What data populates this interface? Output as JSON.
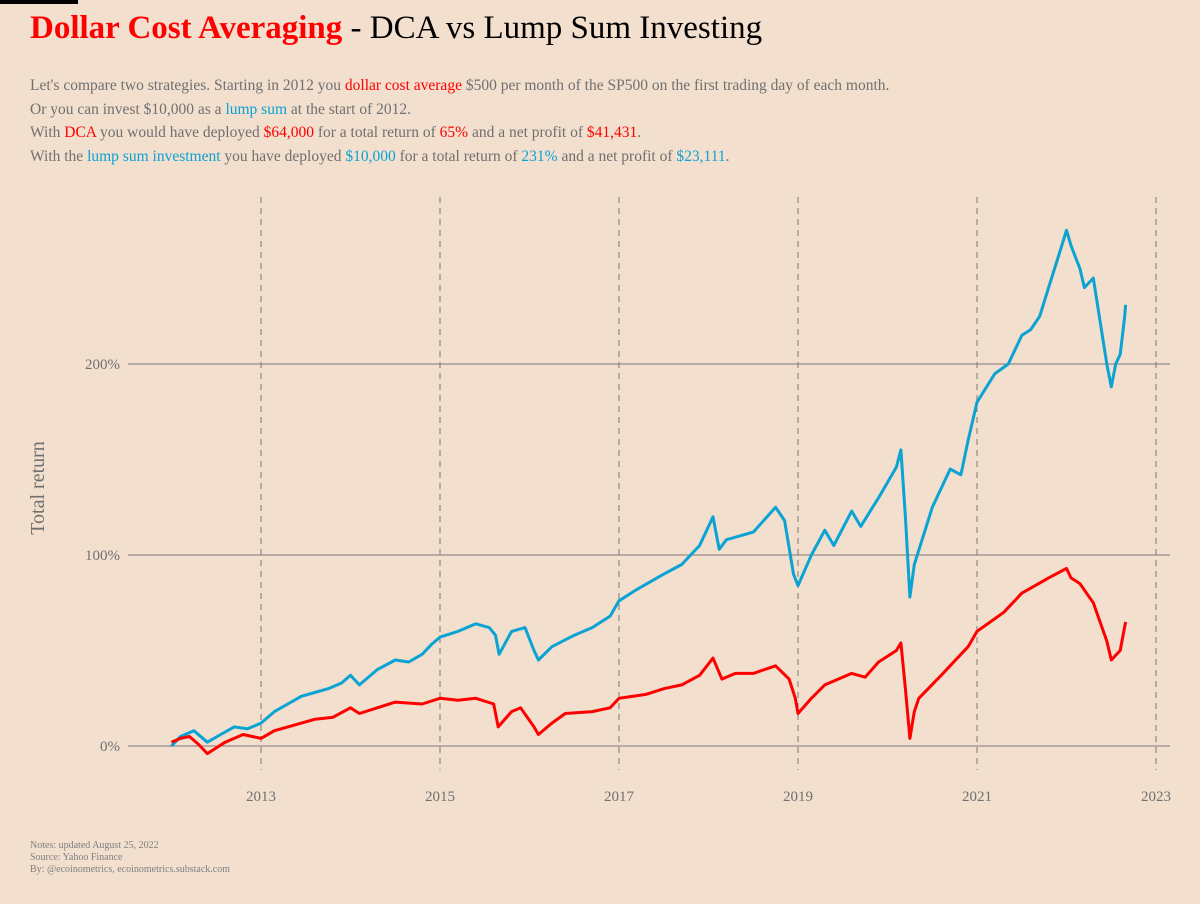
{
  "title": {
    "highlight": "Dollar Cost Averaging",
    "rest": " - DCA vs Lump Sum Investing"
  },
  "subtitle": {
    "l1": [
      "Let's compare two strategies. Starting in 2012 you ",
      "dollar cost average",
      " $500 per month of the SP500 on the first trading day of each month."
    ],
    "l2": [
      "Or you can invest $10,000 as a ",
      "lump sum",
      " at the start of 2012."
    ],
    "l3": [
      "With ",
      "DCA",
      " you would have deployed ",
      "$64,000",
      " for a total return of ",
      "65%",
      " and a net profit of ",
      "$41,431",
      "."
    ],
    "l4": [
      "With the ",
      "lump sum investment",
      " you have deployed ",
      "$10,000",
      " for a total return of ",
      "231%",
      " and a net profit of ",
      "$23,111",
      "."
    ]
  },
  "notes": [
    "Notes: updated August 25, 2022",
    "Source: Yahoo Finance",
    "By: @ecoinometrics, ecoinometrics.substack.com"
  ],
  "colors": {
    "background": "#f2dfce",
    "dca": "#ff0000",
    "lump_sum": "#0aa3d4",
    "grid": "#7a7a7a"
  },
  "chart_data": {
    "type": "line",
    "ylabel": "Total return",
    "xlabel": "",
    "xlim": [
      2011.9,
      2023.1
    ],
    "ylim": [
      -15,
      290
    ],
    "xticks": [
      2013,
      2015,
      2017,
      2019,
      2021,
      2023
    ],
    "xtick_labels": [
      "2013",
      "2015",
      "2017",
      "2019",
      "2021",
      "2023"
    ],
    "yticks": [
      0,
      100,
      200
    ],
    "ytick_labels": [
      "0%",
      "100%",
      "200%"
    ],
    "grid": "horizontal solid at y ticks, vertical dashed at x ticks",
    "series": [
      {
        "key": "lump_sum",
        "x": [
          2012.0,
          2012.1,
          2012.25,
          2012.4,
          2012.55,
          2012.7,
          2012.85,
          2013.0,
          2013.15,
          2013.3,
          2013.45,
          2013.6,
          2013.75,
          2013.9,
          2014.0,
          2014.1,
          2014.3,
          2014.5,
          2014.65,
          2014.8,
          2014.9,
          2015.0,
          2015.2,
          2015.4,
          2015.55,
          2015.62,
          2015.66,
          2015.8,
          2015.95,
          2016.05,
          2016.1,
          2016.25,
          2016.5,
          2016.7,
          2016.9,
          2017.0,
          2017.2,
          2017.5,
          2017.7,
          2017.9,
          2018.05,
          2018.12,
          2018.2,
          2018.35,
          2018.5,
          2018.75,
          2018.85,
          2018.95,
          2019.0,
          2019.15,
          2019.3,
          2019.4,
          2019.6,
          2019.7,
          2019.9,
          2020.1,
          2020.15,
          2020.2,
          2020.25,
          2020.3,
          2020.4,
          2020.5,
          2020.7,
          2020.82,
          2020.9,
          2021.0,
          2021.2,
          2021.35,
          2021.5,
          2021.6,
          2021.7,
          2021.8,
          2021.9,
          2022.0,
          2022.05,
          2022.15,
          2022.2,
          2022.3,
          2022.4,
          2022.45,
          2022.5,
          2022.55,
          2022.6,
          2022.65,
          2022.66
        ],
        "y": [
          0,
          5,
          8,
          2,
          6,
          10,
          9,
          12,
          18,
          22,
          26,
          28,
          30,
          33,
          37,
          32,
          40,
          45,
          44,
          48,
          53,
          57,
          60,
          64,
          62,
          58,
          48,
          60,
          62,
          50,
          45,
          52,
          58,
          62,
          68,
          76,
          82,
          90,
          95,
          105,
          120,
          103,
          108,
          110,
          112,
          125,
          118,
          90,
          84,
          100,
          113,
          105,
          123,
          115,
          130,
          146,
          155,
          120,
          78,
          95,
          110,
          125,
          145,
          142,
          160,
          180,
          195,
          200,
          215,
          218,
          225,
          240,
          255,
          270,
          262,
          250,
          240,
          245,
          215,
          200,
          188,
          200,
          205,
          225,
          231
        ]
      },
      {
        "key": "dca",
        "x": [
          2012.0,
          2012.1,
          2012.2,
          2012.3,
          2012.4,
          2012.5,
          2012.6,
          2012.8,
          2013.0,
          2013.15,
          2013.3,
          2013.6,
          2013.8,
          2014.0,
          2014.1,
          2014.3,
          2014.5,
          2014.8,
          2015.0,
          2015.2,
          2015.4,
          2015.6,
          2015.65,
          2015.8,
          2015.9,
          2016.05,
          2016.1,
          2016.25,
          2016.4,
          2016.7,
          2016.9,
          2017.0,
          2017.3,
          2017.5,
          2017.7,
          2017.9,
          2018.05,
          2018.15,
          2018.3,
          2018.5,
          2018.75,
          2018.9,
          2018.97,
          2019.0,
          2019.15,
          2019.3,
          2019.6,
          2019.75,
          2019.9,
          2020.1,
          2020.15,
          2020.2,
          2020.25,
          2020.3,
          2020.35,
          2020.6,
          2020.9,
          2021.0,
          2021.3,
          2021.5,
          2021.8,
          2022.0,
          2022.05,
          2022.15,
          2022.3,
          2022.45,
          2022.5,
          2022.6,
          2022.66
        ],
        "y": [
          2,
          4,
          5,
          1,
          -4,
          -1,
          2,
          6,
          4,
          8,
          10,
          14,
          15,
          20,
          17,
          20,
          23,
          22,
          25,
          24,
          25,
          22,
          10,
          18,
          20,
          10,
          6,
          12,
          17,
          18,
          20,
          25,
          27,
          30,
          32,
          37,
          46,
          35,
          38,
          38,
          42,
          35,
          25,
          17,
          25,
          32,
          38,
          36,
          44,
          50,
          54,
          30,
          4,
          18,
          25,
          37,
          52,
          60,
          70,
          80,
          88,
          93,
          88,
          85,
          75,
          55,
          45,
          50,
          65
        ]
      }
    ]
  }
}
